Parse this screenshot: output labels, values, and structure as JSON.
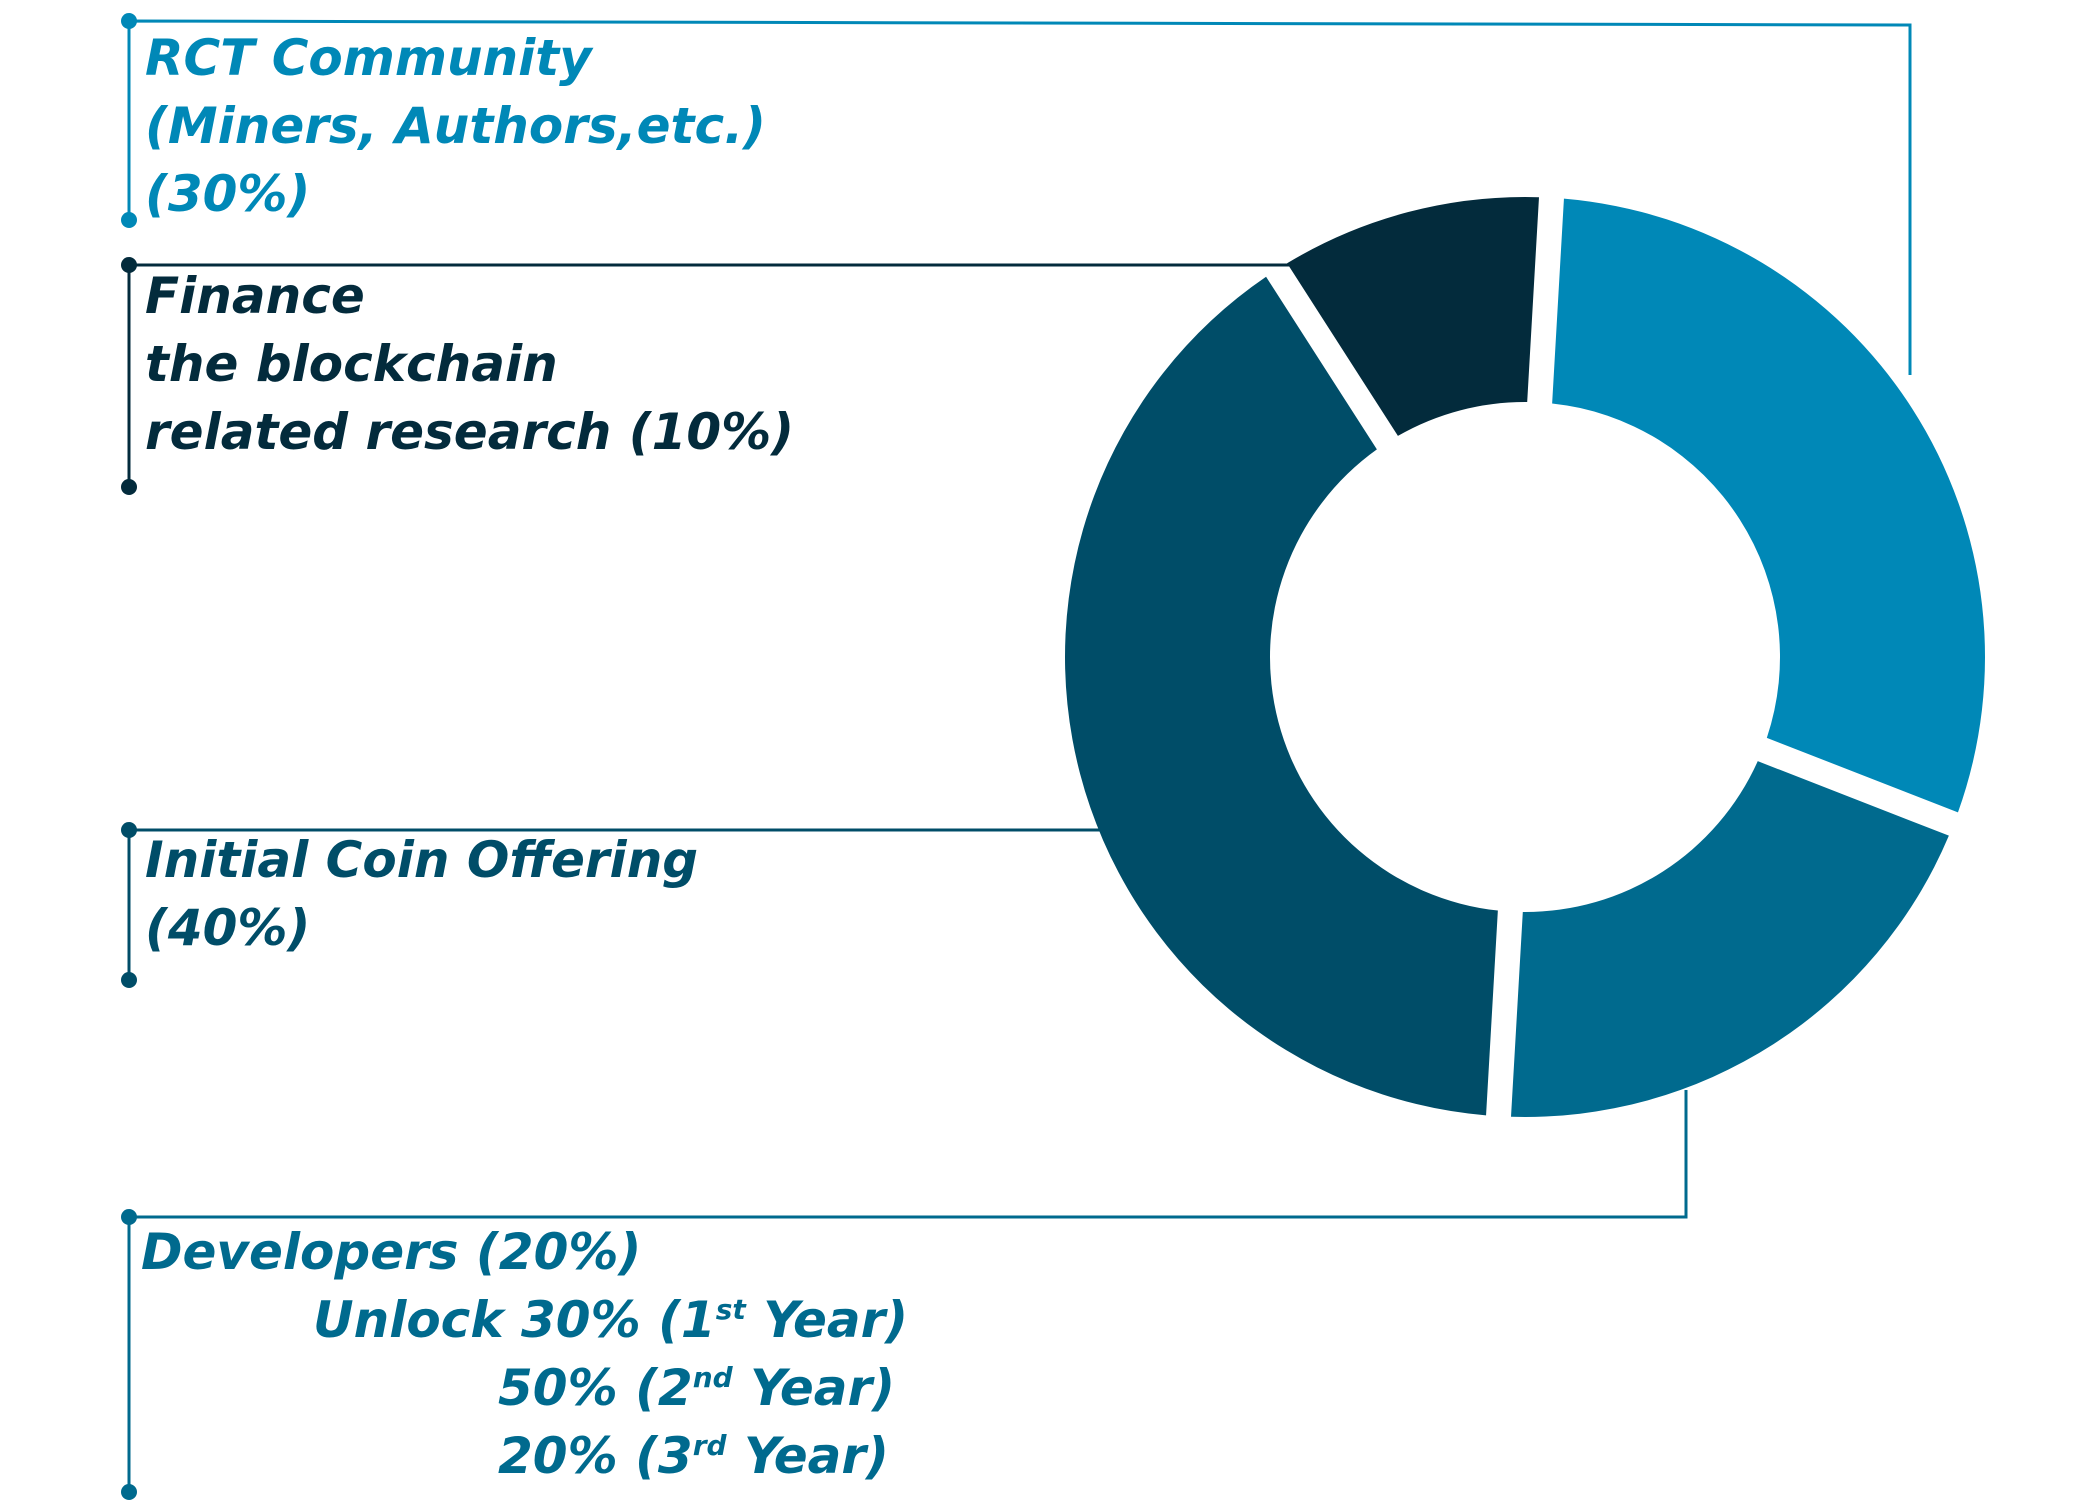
{
  "chart_data": {
    "type": "pie",
    "title": "",
    "style": "donut",
    "slices": [
      {
        "name": "RCT Community",
        "value": 30,
        "color": "#0088b7"
      },
      {
        "name": "Developers",
        "value": 20,
        "color": "#006a8e"
      },
      {
        "name": "Initial Coin Offering",
        "value": 40,
        "color": "#004d68"
      },
      {
        "name": "Finance the blockchain related research",
        "value": 10,
        "color": "#032b3c"
      }
    ]
  },
  "labels": {
    "community": {
      "line1": "RCT Community",
      "line2": "(Miners, Authors,etc.)",
      "line3": "(30%)",
      "color": "#0088b7"
    },
    "finance": {
      "line1": "Finance",
      "line2": "the blockchain",
      "line3": "related research (10%)",
      "color": "#032b3c"
    },
    "ico": {
      "line1": "Initial Coin Offering",
      "line2": "(40%)",
      "color": "#004d68"
    },
    "developers": {
      "line1": "Developers (20%)",
      "unlock_prefix": "Unlock 30% (1",
      "sup1": "st",
      "suffix1": " Year)",
      "line3_prefix": "50% (2",
      "sup2": "nd",
      "suffix2": " Year)",
      "line4_prefix": "20% (3",
      "sup3": "rd",
      "suffix3": " Year)",
      "color": "#006a8e"
    }
  }
}
